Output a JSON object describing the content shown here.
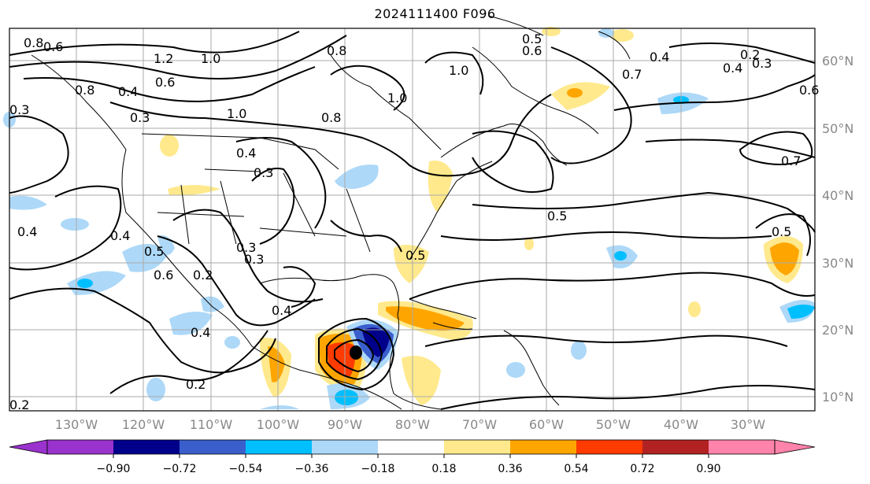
{
  "title": "2024111400 F096",
  "map": {
    "lon_labels": [
      "130°W",
      "120°W",
      "110°W",
      "100°W",
      "90°W",
      "80°W",
      "70°W",
      "60°W",
      "50°W",
      "40°W",
      "30°W"
    ],
    "lat_labels": [
      "60°N",
      "50°N",
      "40°N",
      "30°N",
      "20°N",
      "10°N"
    ],
    "contour_labels": [
      "0.8",
      "0.6",
      "1.2",
      "0.6",
      "0.4",
      "0.3",
      "1.0",
      "0.8",
      "1.0",
      "0.5",
      "0.6",
      "0.4",
      "0.3",
      "0.8",
      "0.4",
      "0.3",
      "0.4",
      "0.3",
      "0.4",
      "0.5",
      "0.2",
      "0.3",
      "0.4",
      "0.4",
      "0.2",
      "0.5",
      "0.5",
      "0.7",
      "0.5",
      "0.6",
      "0.2",
      "0.3",
      "0.8",
      "1.0",
      "1.0",
      "0.7",
      "0.6",
      "0.2",
      "0.4"
    ]
  },
  "colorbar": {
    "ticks": [
      "−0.90",
      "−0.72",
      "−0.54",
      "−0.36",
      "−0.18",
      "0.18",
      "0.36",
      "0.54",
      "0.72",
      "0.90"
    ],
    "colors": [
      "#9a32cd",
      "#00008b",
      "#3a5fcd",
      "#00bfff",
      "#add8f8",
      "#ffffff",
      "#ffe98c",
      "#ffa500",
      "#ff3b00",
      "#b22222",
      "#ff83aa"
    ]
  },
  "legend_colors": {
    "neg_strong": "#00008b",
    "neg_mid": "#00bfff",
    "neg_weak": "#add8f8",
    "pos_weak": "#ffe98c",
    "pos_mid": "#ffa500",
    "pos_strong": "#ff3b00",
    "grid": "#aaaaaa"
  }
}
